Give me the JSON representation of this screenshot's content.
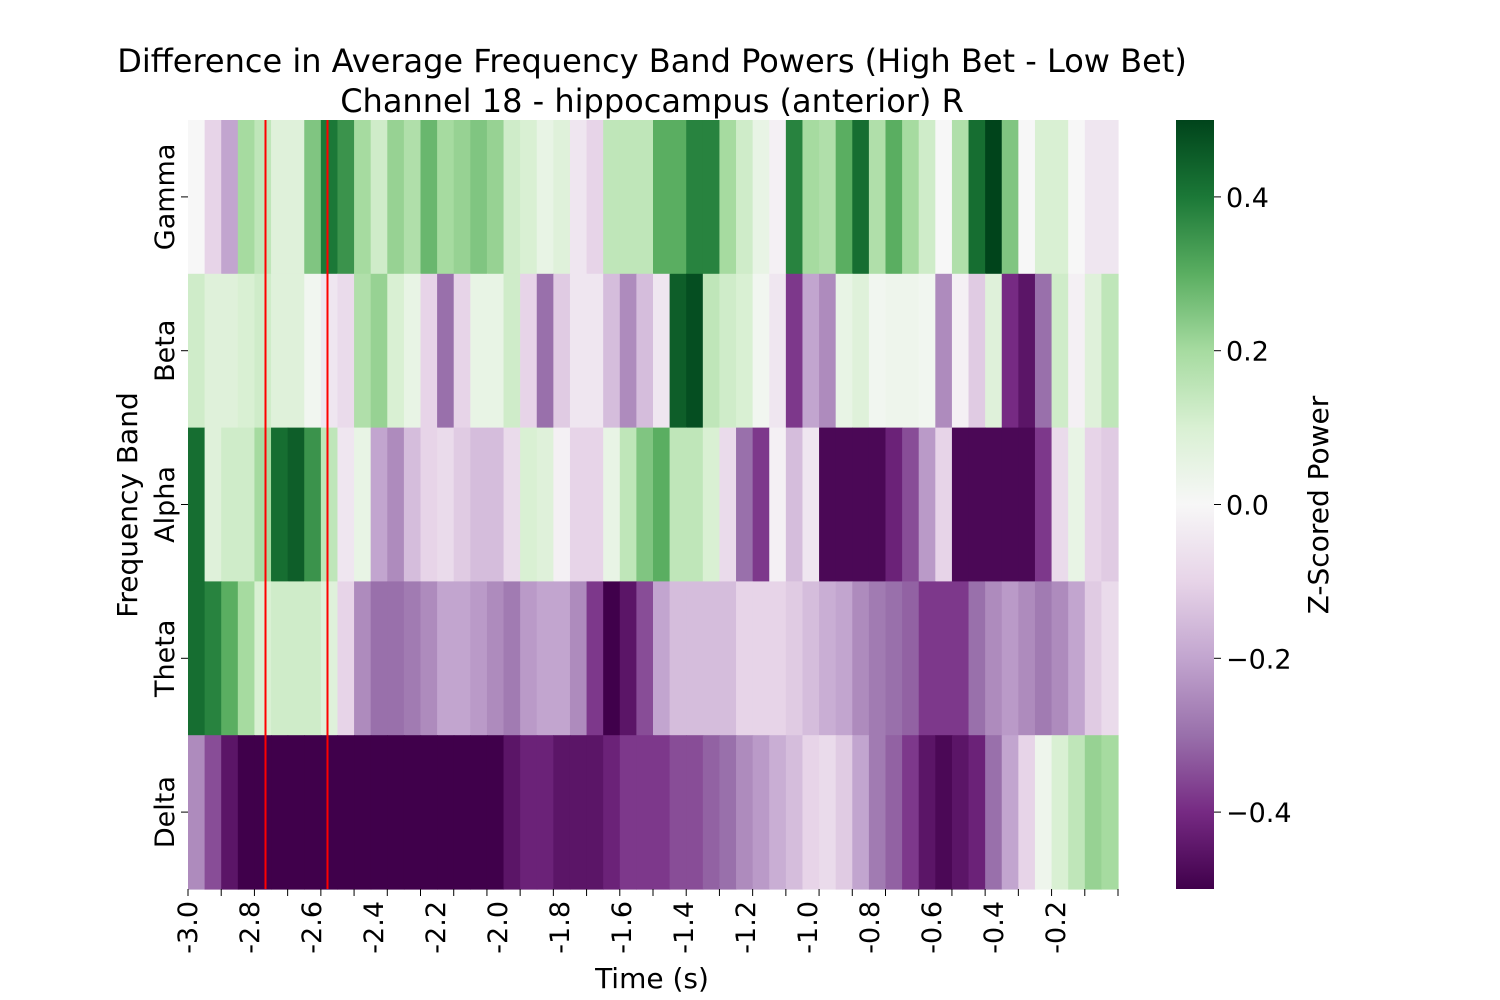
{
  "chart_data": {
    "type": "heatmap",
    "title": "Difference in Average Frequency Band Powers (High Bet - Low Bet)",
    "subtitle": "Channel 18 - hippocampus (anterior) R",
    "xlabel": "Time (s)",
    "ylabel": "Frequency Band",
    "x_start": -3.0,
    "x_step": 0.05,
    "xlim": [
      -3.0,
      0.0
    ],
    "x_tick_labels": [
      "-3.0",
      "-2.8",
      "-2.6",
      "-2.4",
      "-2.2",
      "-2.0",
      "-1.8",
      "-1.6",
      "-1.4",
      "-1.2",
      "-1.0",
      "-0.8",
      "-0.6",
      "-0.4",
      "-0.2"
    ],
    "x_tick_values": [
      -3.0,
      -2.8,
      -2.6,
      -2.4,
      -2.2,
      -2.0,
      -1.8,
      -1.6,
      -1.4,
      -1.2,
      -1.0,
      -0.8,
      -0.6,
      -0.4,
      -0.2
    ],
    "rows": [
      "Gamma",
      "Beta",
      "Alpha",
      "Theta",
      "Delta"
    ],
    "colorbar": {
      "label": "Z-Scored Power",
      "vmin": -0.5,
      "vmax": 0.5,
      "ticks": [
        0.4,
        0.2,
        0.0,
        -0.2,
        -0.4
      ],
      "tick_labels": [
        "0.4",
        "0.2",
        "0.0",
        "−0.2",
        "−0.4"
      ],
      "colormap": "PRGn"
    },
    "vertical_lines": {
      "color": "#ff0000",
      "x": [
        -2.75,
        -2.55
      ]
    },
    "values": [
      [
        0.0,
        -0.1,
        -0.2,
        0.2,
        0.15,
        0.08,
        0.08,
        0.25,
        0.4,
        0.35,
        0.2,
        0.12,
        0.22,
        0.18,
        0.28,
        0.2,
        0.22,
        0.25,
        0.22,
        0.12,
        0.1,
        0.05,
        0.08,
        -0.05,
        -0.1,
        0.15,
        0.15,
        0.15,
        0.3,
        0.3,
        0.38,
        0.38,
        0.2,
        0.12,
        0.05,
        -0.02,
        0.38,
        0.2,
        0.18,
        0.3,
        0.42,
        0.18,
        0.3,
        0.2,
        0.12,
        0.0,
        0.18,
        0.42,
        0.5,
        0.25,
        0.0,
        0.1,
        0.1,
        0.0,
        -0.05,
        -0.05
      ],
      [
        0.12,
        0.08,
        0.08,
        0.1,
        0.12,
        0.08,
        0.08,
        0.02,
        -0.05,
        -0.08,
        0.18,
        0.22,
        0.1,
        0.05,
        -0.1,
        -0.3,
        -0.1,
        0.05,
        0.05,
        0.12,
        -0.1,
        -0.3,
        -0.12,
        -0.05,
        -0.05,
        -0.15,
        -0.25,
        -0.15,
        -0.05,
        0.45,
        0.48,
        0.15,
        0.12,
        0.1,
        0.02,
        -0.05,
        -0.38,
        -0.2,
        -0.25,
        0.05,
        0.08,
        0.02,
        0.03,
        0.03,
        0.02,
        -0.25,
        -0.02,
        -0.12,
        0.08,
        -0.4,
        -0.45,
        -0.3,
        0.12,
        -0.02,
        0.08,
        0.15
      ],
      [
        0.42,
        0.08,
        0.12,
        0.12,
        0.2,
        0.42,
        0.45,
        0.35,
        0.15,
        -0.05,
        0.05,
        -0.2,
        -0.25,
        -0.15,
        -0.1,
        -0.08,
        -0.12,
        -0.15,
        -0.15,
        -0.08,
        0.1,
        0.08,
        -0.02,
        -0.1,
        -0.1,
        0.05,
        0.15,
        0.25,
        0.3,
        0.15,
        0.15,
        0.1,
        -0.08,
        -0.3,
        -0.38,
        -0.02,
        -0.15,
        -0.05,
        -0.48,
        -0.48,
        -0.48,
        -0.48,
        -0.42,
        -0.35,
        -0.22,
        -0.1,
        -0.48,
        -0.48,
        -0.48,
        -0.48,
        -0.48,
        -0.38,
        -0.08,
        0.05,
        -0.1,
        -0.12
      ],
      [
        0.42,
        0.38,
        0.3,
        0.2,
        0.1,
        0.12,
        0.12,
        0.12,
        0.08,
        -0.1,
        -0.25,
        -0.3,
        -0.3,
        -0.28,
        -0.25,
        -0.2,
        -0.2,
        -0.22,
        -0.25,
        -0.28,
        -0.22,
        -0.2,
        -0.2,
        -0.25,
        -0.38,
        -0.5,
        -0.45,
        -0.35,
        -0.2,
        -0.15,
        -0.15,
        -0.15,
        -0.15,
        -0.1,
        -0.1,
        -0.1,
        -0.12,
        -0.15,
        -0.18,
        -0.2,
        -0.25,
        -0.28,
        -0.3,
        -0.32,
        -0.38,
        -0.38,
        -0.38,
        -0.3,
        -0.25,
        -0.22,
        -0.25,
        -0.28,
        -0.25,
        -0.2,
        -0.12,
        -0.08
      ],
      [
        -0.25,
        -0.35,
        -0.45,
        -0.5,
        -0.5,
        -0.5,
        -0.5,
        -0.5,
        -0.5,
        -0.5,
        -0.5,
        -0.5,
        -0.5,
        -0.5,
        -0.5,
        -0.5,
        -0.5,
        -0.5,
        -0.5,
        -0.45,
        -0.42,
        -0.42,
        -0.45,
        -0.45,
        -0.45,
        -0.42,
        -0.38,
        -0.38,
        -0.38,
        -0.35,
        -0.35,
        -0.32,
        -0.3,
        -0.25,
        -0.22,
        -0.18,
        -0.15,
        -0.1,
        -0.08,
        -0.12,
        -0.2,
        -0.28,
        -0.32,
        -0.38,
        -0.45,
        -0.48,
        -0.45,
        -0.42,
        -0.3,
        -0.2,
        -0.1,
        0.03,
        0.1,
        0.15,
        0.22,
        0.2
      ]
    ]
  }
}
